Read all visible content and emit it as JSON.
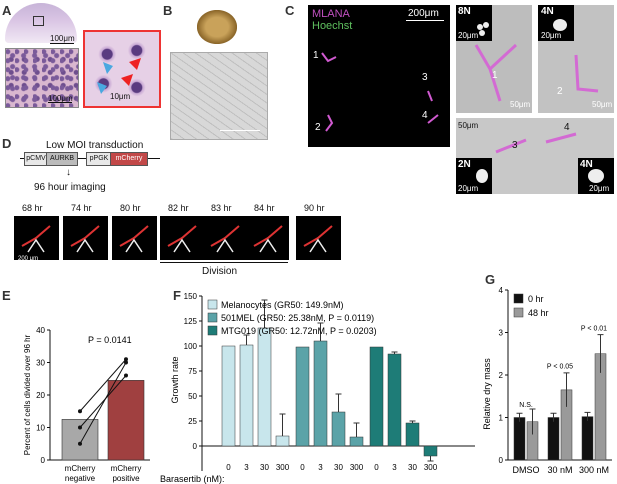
{
  "panels": {
    "A": {
      "label": "A",
      "scale1": "100μm",
      "scale2": "100μm",
      "scale3": "10μm"
    },
    "B": {
      "label": "B"
    },
    "C": {
      "label": "C",
      "title1": "MLANA",
      "title2": "Hoechst",
      "scale_main": "200μm",
      "cells": [
        "1",
        "2",
        "3",
        "4"
      ],
      "insets": [
        {
          "ploidy": "8N",
          "inset_scale": "20μm",
          "scale": "50μm",
          "cell": "1"
        },
        {
          "ploidy": "4N",
          "inset_scale": "20μm",
          "scale": "50μm",
          "cell": "2"
        },
        {
          "ploidy": "2N",
          "inset_scale": "20μm",
          "scale": "50μm",
          "cell": "3"
        },
        {
          "ploidy": "4N",
          "inset_scale": "20μm",
          "scale": "",
          "cell": "4"
        }
      ]
    },
    "D": {
      "label": "D",
      "title": "Low MOI transduction",
      "construct": [
        "pCMV",
        "AURKB",
        "pPGK",
        "mCherry"
      ],
      "arrow_label": "96 hour imaging",
      "timepoints": [
        "68 hr",
        "74 hr",
        "80 hr",
        "82 hr",
        "83 hr",
        "84 hr",
        "90 hr"
      ],
      "scale": "200 μm",
      "division": "Division"
    },
    "E": {
      "label": "E",
      "ylabel": "Percent of cells divided over 96 hr",
      "pvalue": "P = 0.0141",
      "xcat1a": "mCherry",
      "xcat1b": "negative",
      "xcat2a": "mCherry",
      "xcat2b": "positive"
    },
    "F": {
      "label": "F",
      "ylabel": "Growth rate",
      "xlabel": "Barasertib (nM):"
    },
    "G": {
      "label": "G",
      "ylabel": "Relative dry mass",
      "pvals": [
        "N.S.",
        "P < 0.05",
        "P < 0.01"
      ]
    }
  },
  "colors": {
    "melanocyte": "#c8e6ec",
    "mel501": "#5ba3a8",
    "mtg019": "#1e7c77",
    "mcherry_neg": "#a8a8a8",
    "mcherry_pos": "#a04040",
    "g_0hr": "#111111",
    "g_48hr": "#9a9a9a"
  },
  "chart_data": [
    {
      "type": "bar",
      "panel": "E",
      "categories": [
        "mCherry negative",
        "mCherry positive"
      ],
      "values": [
        12.5,
        24.5
      ],
      "paired_points": [
        [
          5,
          30
        ],
        [
          10,
          26
        ],
        [
          15,
          31
        ]
      ],
      "ylim": [
        0,
        40
      ],
      "yticks": [
        0,
        10,
        20,
        30,
        40
      ],
      "annotation": "P = 0.0141"
    },
    {
      "type": "bar",
      "panel": "F",
      "categories": [
        "0",
        "3",
        "30",
        "300"
      ],
      "series": [
        {
          "name": "Melanocytes (GR50: 149.9nM)",
          "values": [
            100,
            101,
            118,
            10
          ],
          "err": [
            0,
            10,
            28,
            22
          ]
        },
        {
          "name": "501MEL (GR50: 25.38nM, P = 0.0119)",
          "values": [
            99,
            105,
            34,
            9
          ],
          "err": [
            0,
            18,
            18,
            14
          ]
        },
        {
          "name": "MTG019 (GR50: 12.72nM, P = 0.0203)",
          "values": [
            99,
            92,
            23,
            -10
          ],
          "err": [
            0,
            2,
            2,
            5
          ]
        }
      ],
      "ylim": [
        -25,
        150
      ],
      "yticks": [
        0,
        25,
        50,
        75,
        100,
        125,
        150
      ],
      "ylabel": "Growth rate",
      "xlabel": "Barasertib (nM):"
    },
    {
      "type": "bar",
      "panel": "G",
      "categories": [
        "DMSO",
        "30 nM",
        "300 nM"
      ],
      "series": [
        {
          "name": "0 hr",
          "values": [
            1.0,
            1.0,
            1.02
          ],
          "err": [
            0.1,
            0.1,
            0.1
          ]
        },
        {
          "name": "48 hr",
          "values": [
            0.9,
            1.65,
            2.5
          ],
          "err": [
            0.3,
            0.4,
            0.45
          ]
        }
      ],
      "annotations": [
        "N.S.",
        "P < 0.05",
        "P < 0.01"
      ],
      "ylim": [
        0,
        4
      ],
      "yticks": [
        0,
        1,
        2,
        3,
        4
      ],
      "ylabel": "Relative dry mass"
    }
  ]
}
